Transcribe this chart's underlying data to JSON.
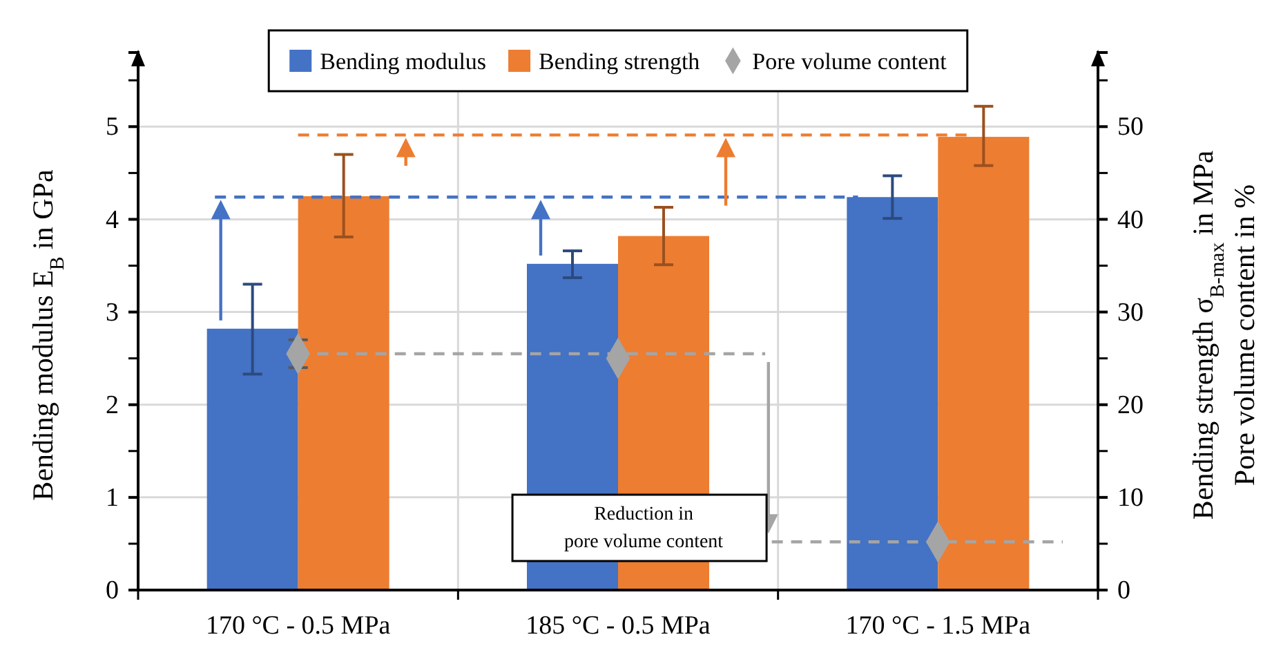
{
  "chart_data": {
    "type": "bar",
    "categories": [
      "170 °C - 0.5 MPa",
      "185 °C - 0.5 MPa",
      "170 °C - 1.5 MPa"
    ],
    "series": [
      {
        "name": "Bending modulus",
        "color": "#4472c4",
        "axis": "y",
        "values": [
          2.82,
          3.52,
          4.24
        ],
        "errors": [
          [
            2.33,
            3.3
          ],
          [
            3.37,
            3.66
          ],
          [
            4.01,
            4.47
          ]
        ]
      },
      {
        "name": "Bending strength",
        "color": "#ed7d31",
        "axis": "y2",
        "values": [
          42.5,
          38.2,
          48.9
        ],
        "errors": [
          [
            38.1,
            47.0
          ],
          [
            35.1,
            41.3
          ],
          [
            45.8,
            52.2
          ]
        ]
      },
      {
        "name": "Pore volume content",
        "type": "scatter",
        "marker": "diamond",
        "color": "#a5a5a5",
        "axis": "y2",
        "values": [
          25.5,
          25.0,
          5.2
        ],
        "errors": [
          1.5,
          null,
          null
        ]
      }
    ],
    "ylabel": "Bending modulus E$_{B}$ in GPa",
    "y2label": "Bending strength σ$_{B-max}$ in MPa\nPore volume content in %",
    "ylim": [
      0,
      5.8
    ],
    "yticks": [
      0,
      1,
      2,
      3,
      4,
      5
    ],
    "y2lim": [
      0,
      58
    ],
    "y2ticks": [
      0,
      10,
      20,
      30,
      40,
      50
    ],
    "ref_lines": [
      {
        "axis": "y",
        "value": 4.24,
        "color": "#4472c4",
        "line_style": "dashed"
      },
      {
        "axis": "y2",
        "value": 49.1,
        "color": "#ed7d31",
        "line_style": "dashed"
      },
      {
        "axis": "y2",
        "value": 25.5,
        "color": "#a5a5a5",
        "line_style": "dashed"
      },
      {
        "axis": "y2",
        "value": 5.2,
        "color": "#a5a5a5",
        "line_style": "dashed"
      }
    ],
    "annotations": [
      "Reduction in\npore volume content"
    ],
    "grid": true,
    "legend": "top"
  }
}
